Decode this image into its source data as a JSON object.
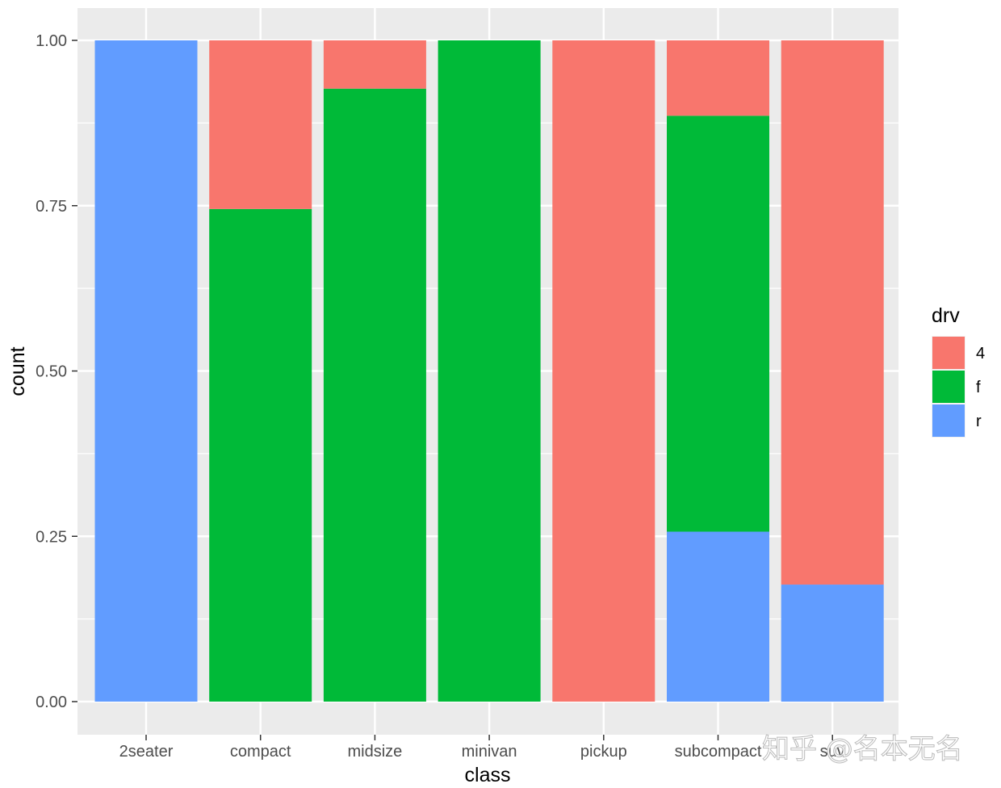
{
  "chart_data": {
    "type": "bar",
    "stacked": true,
    "position": "fill",
    "categories": [
      "2seater",
      "compact",
      "midsize",
      "minivan",
      "pickup",
      "subcompact",
      "suv"
    ],
    "series": [
      {
        "name": "4",
        "color": "#F8766D",
        "values": [
          0,
          0.255,
          0.073,
          0,
          1,
          0.114,
          0.823
        ]
      },
      {
        "name": "f",
        "color": "#00BA38",
        "values": [
          0,
          0.745,
          0.927,
          1,
          0,
          0.629,
          0
        ]
      },
      {
        "name": "r",
        "color": "#619CFF",
        "values": [
          1,
          0,
          0,
          0,
          0,
          0.257,
          0.177
        ]
      }
    ],
    "stack_order_bottom_to_top": [
      "r",
      "f",
      "4"
    ],
    "xlabel": "class",
    "ylabel": "count",
    "ylim": [
      0,
      1
    ],
    "yticks": [
      0,
      0.25,
      0.5,
      0.75,
      1
    ],
    "ytick_labels": [
      "0.00",
      "0.25",
      "0.50",
      "0.75",
      "1.00"
    ],
    "legend": {
      "title": "drv",
      "position": "right"
    },
    "grid": true,
    "panel_background": "#EBEBEB",
    "grid_color": "#FFFFFF"
  },
  "watermark": {
    "text": "知乎 @名本无名"
  }
}
